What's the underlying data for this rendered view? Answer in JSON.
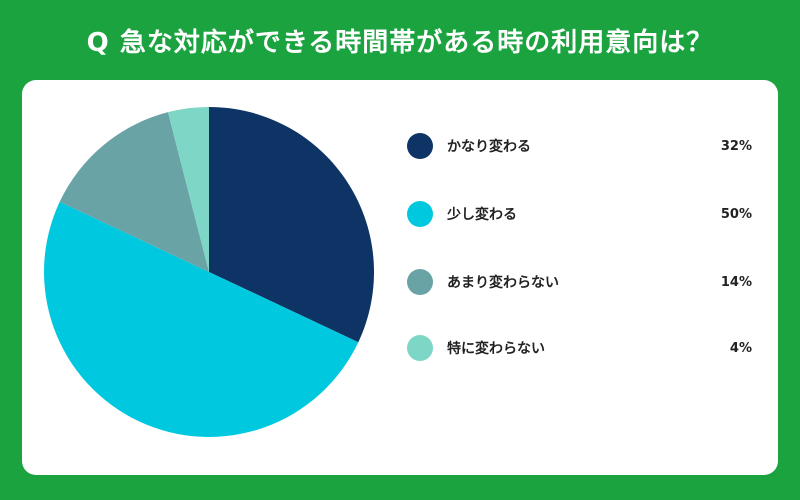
{
  "title": "Q 急な対応ができる時間帯がある時の利用意向は？",
  "colors": {
    "background": "#1aa33f",
    "card": "#ffffff"
  },
  "chart_data": {
    "type": "pie",
    "slices": [
      {
        "label": "かなり変わる",
        "value": 32,
        "display": "32%",
        "color": "#0d3464"
      },
      {
        "label": "少し変わる",
        "value": 50,
        "display": "50%",
        "color": "#00c8df"
      },
      {
        "label": "あまり変わらない",
        "value": 14,
        "display": "14%",
        "color": "#6aa3a6"
      },
      {
        "label": "特に変わらない",
        "value": 4,
        "display": "4%",
        "color": "#7ed6c6"
      }
    ],
    "start": "12 o'clock",
    "direction": "clockwise",
    "legend_position": "right"
  }
}
